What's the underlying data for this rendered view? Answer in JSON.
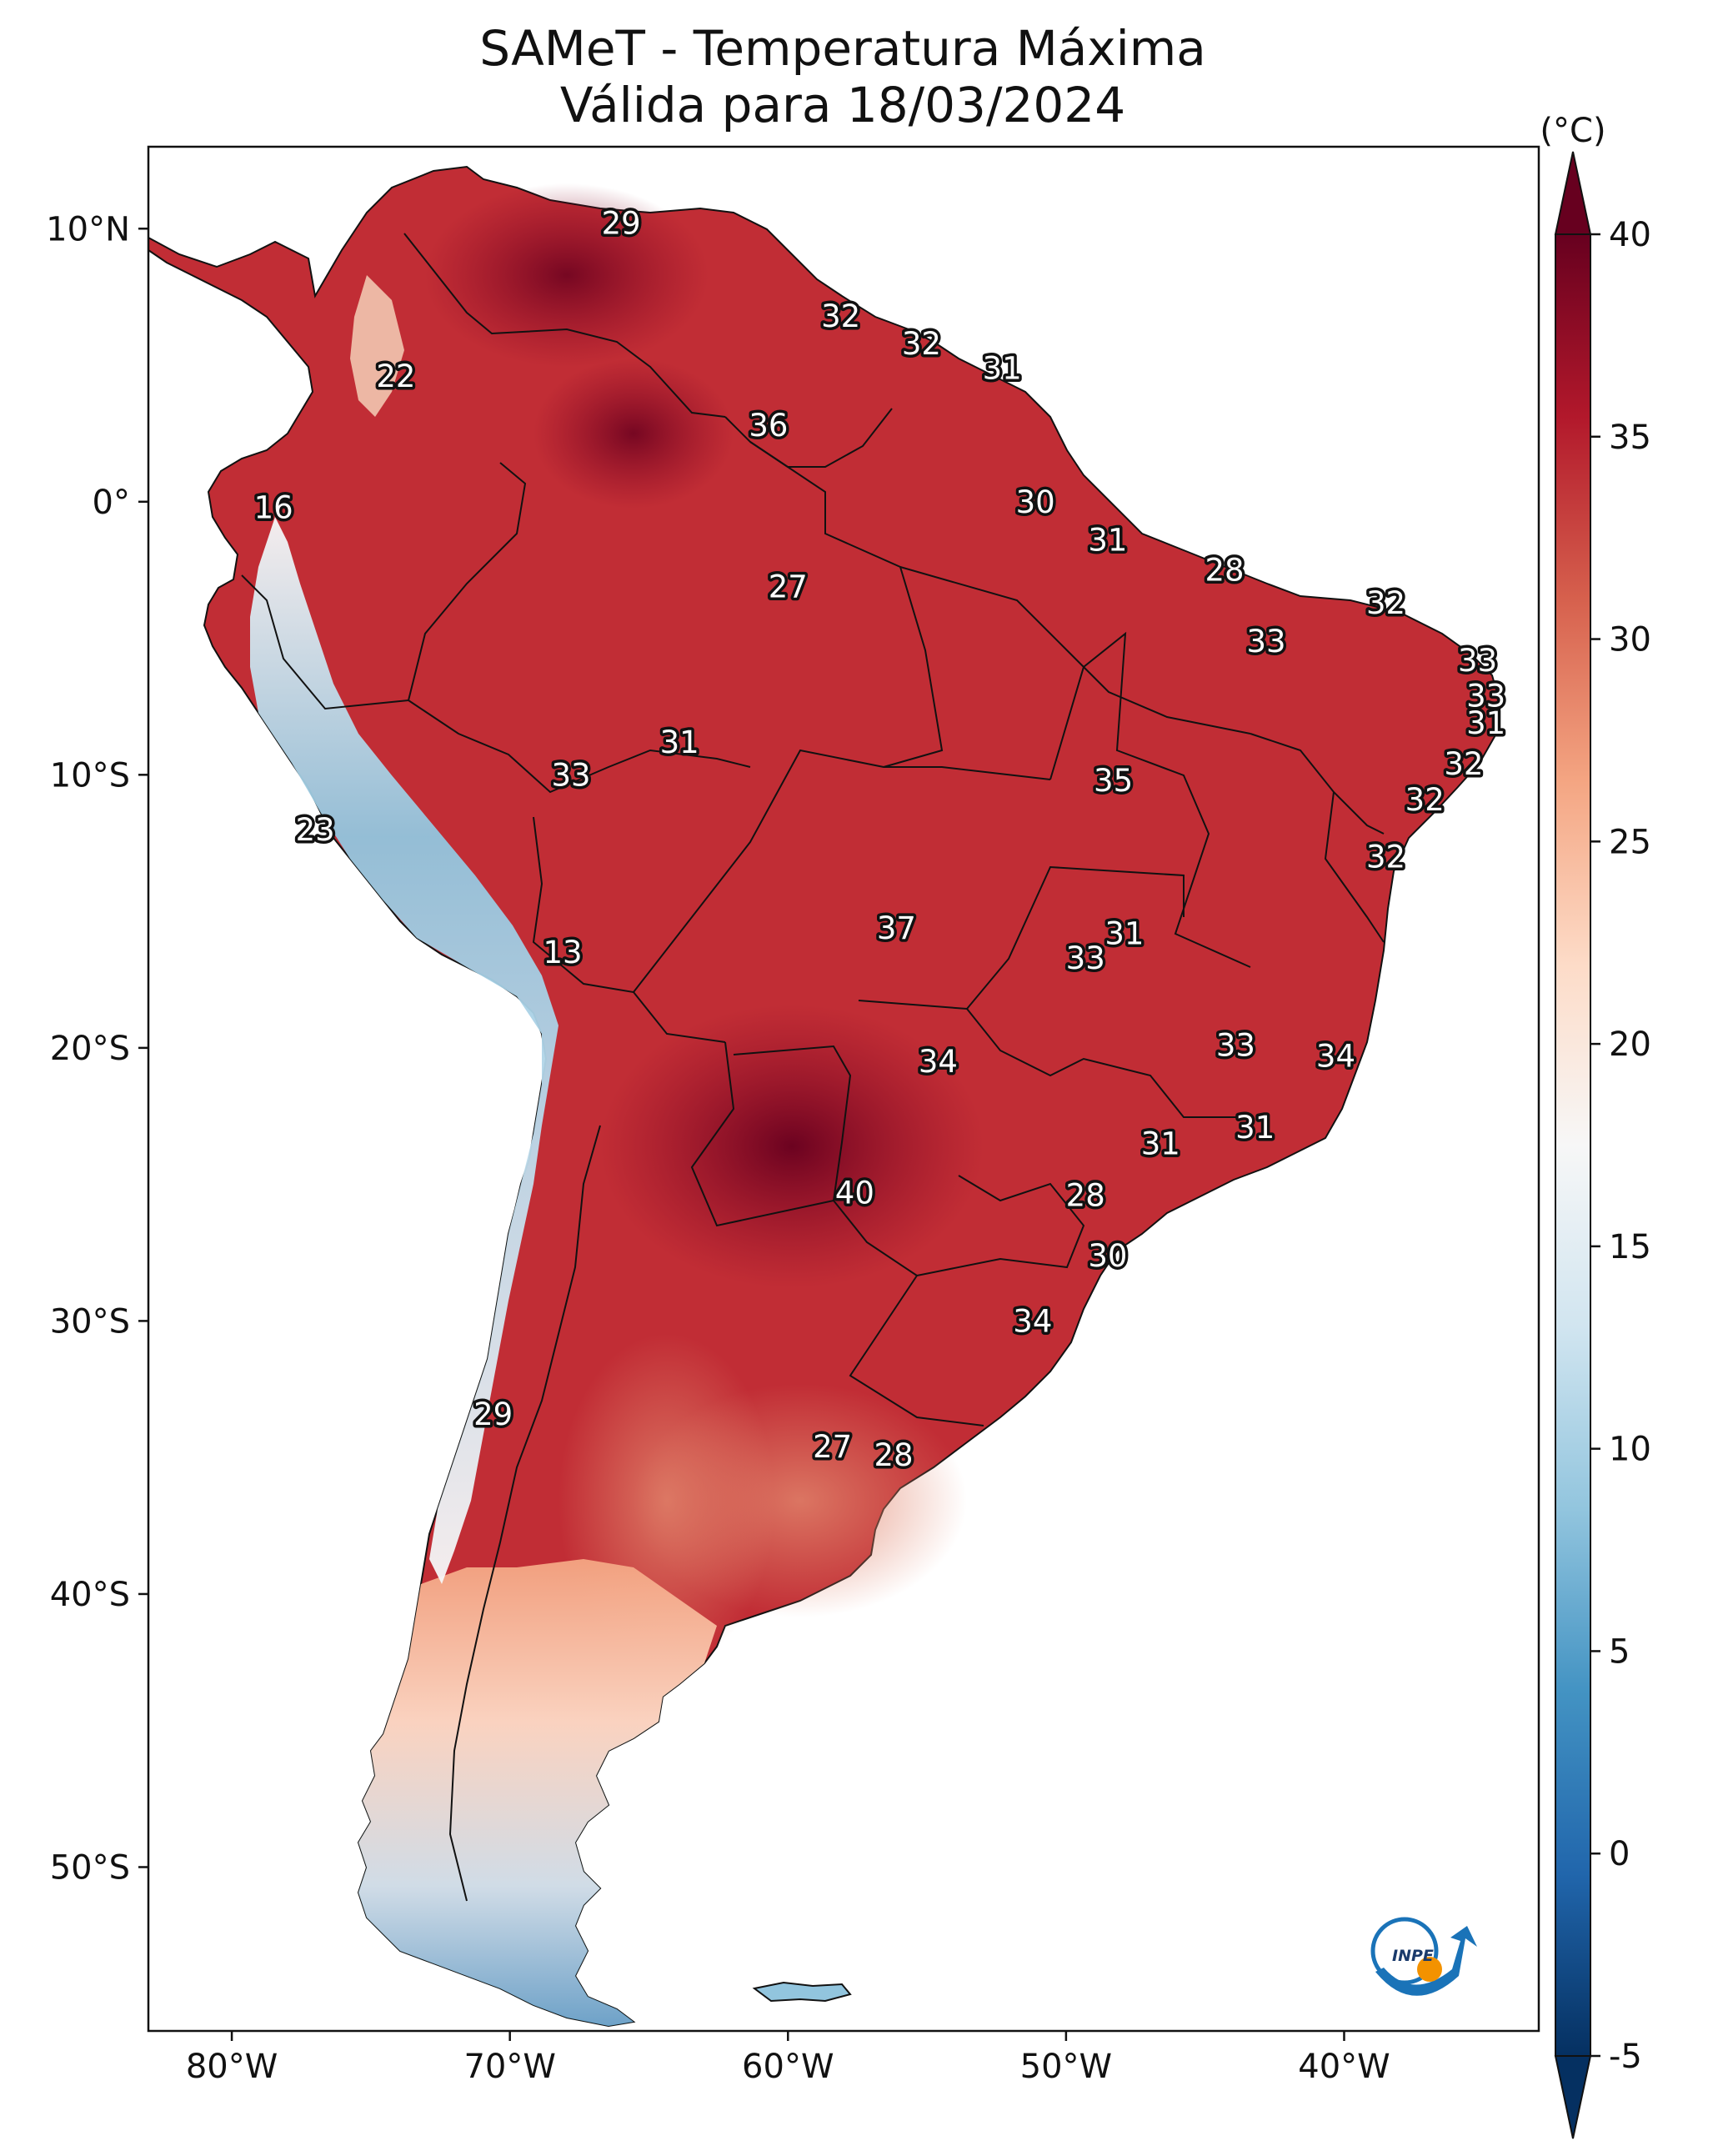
{
  "title": {
    "line1": "SAMeT - Temperatura Máxima",
    "line2": "Válida para 18/03/2024"
  },
  "map": {
    "lat_range": [
      -56,
      13
    ],
    "lon_range": [
      -83,
      -33
    ],
    "lat_ticks": [
      {
        "value": 10,
        "label": "10°N"
      },
      {
        "value": 0,
        "label": "0°"
      },
      {
        "value": -10,
        "label": "10°S"
      },
      {
        "value": -20,
        "label": "20°S"
      },
      {
        "value": -30,
        "label": "30°S"
      },
      {
        "value": -40,
        "label": "40°S"
      },
      {
        "value": -50,
        "label": "50°S"
      }
    ],
    "lon_ticks": [
      {
        "value": -80,
        "label": "80°W"
      },
      {
        "value": -70,
        "label": "70°W"
      },
      {
        "value": -60,
        "label": "60°W"
      },
      {
        "value": -50,
        "label": "50°W"
      },
      {
        "value": -40,
        "label": "40°W"
      }
    ]
  },
  "colorbar": {
    "unit_label": "(°C)",
    "min": -5,
    "max": 40,
    "ticks": [
      {
        "value": 40,
        "label": "40"
      },
      {
        "value": 35,
        "label": "35"
      },
      {
        "value": 30,
        "label": "30"
      },
      {
        "value": 25,
        "label": "25"
      },
      {
        "value": 20,
        "label": "20"
      },
      {
        "value": 15,
        "label": "15"
      },
      {
        "value": 10,
        "label": "10"
      },
      {
        "value": 5,
        "label": "5"
      },
      {
        "value": 0,
        "label": "0"
      },
      {
        "value": -5,
        "label": "-5"
      }
    ],
    "colors": [
      "#053061",
      "#2166ac",
      "#4393c3",
      "#92c5de",
      "#d1e5f0",
      "#f7f7f7",
      "#fddbc7",
      "#f4a582",
      "#d6604d",
      "#b2182b",
      "#67001f"
    ]
  },
  "logo_text": "INPE",
  "city_values": [
    {
      "label": "29",
      "lat": 10.2,
      "lon": -66.0
    },
    {
      "label": "22",
      "lat": 4.6,
      "lon": -74.1
    },
    {
      "label": "16",
      "lat": -0.2,
      "lon": -78.5
    },
    {
      "label": "32",
      "lat": 6.8,
      "lon": -58.1
    },
    {
      "label": "32",
      "lat": 5.8,
      "lon": -55.2
    },
    {
      "label": "31",
      "lat": 4.9,
      "lon": -52.3
    },
    {
      "label": "36",
      "lat": 2.8,
      "lon": -60.7
    },
    {
      "label": "30",
      "lat": 0.0,
      "lon": -51.1
    },
    {
      "label": "31",
      "lat": -1.4,
      "lon": -48.5
    },
    {
      "label": "28",
      "lat": -2.5,
      "lon": -44.3
    },
    {
      "label": "27",
      "lat": -3.1,
      "lon": -60.0
    },
    {
      "label": "32",
      "lat": -3.7,
      "lon": -38.5
    },
    {
      "label": "33",
      "lat": -5.1,
      "lon": -42.8
    },
    {
      "label": "33",
      "lat": -5.8,
      "lon": -35.2
    },
    {
      "label": "33",
      "lat": -7.1,
      "lon": -34.9
    },
    {
      "label": "31",
      "lat": -8.1,
      "lon": -34.9
    },
    {
      "label": "31",
      "lat": -8.8,
      "lon": -63.9
    },
    {
      "label": "33",
      "lat": -10.0,
      "lon": -67.8
    },
    {
      "label": "35",
      "lat": -10.2,
      "lon": -48.3
    },
    {
      "label": "32",
      "lat": -9.6,
      "lon": -35.7
    },
    {
      "label": "32",
      "lat": -10.9,
      "lon": -37.1
    },
    {
      "label": "32",
      "lat": -13.0,
      "lon": -38.5
    },
    {
      "label": "23",
      "lat": -12.0,
      "lon": -77.0
    },
    {
      "label": "13",
      "lat": -16.5,
      "lon": -68.1
    },
    {
      "label": "37",
      "lat": -15.6,
      "lon": -56.1
    },
    {
      "label": "31",
      "lat": -15.8,
      "lon": -47.9
    },
    {
      "label": "33",
      "lat": -16.7,
      "lon": -49.3
    },
    {
      "label": "33",
      "lat": -19.9,
      "lon": -43.9
    },
    {
      "label": "34",
      "lat": -20.5,
      "lon": -54.6
    },
    {
      "label": "34",
      "lat": -20.3,
      "lon": -40.3
    },
    {
      "label": "31",
      "lat": -23.5,
      "lon": -46.6
    },
    {
      "label": "31",
      "lat": -22.9,
      "lon": -43.2
    },
    {
      "label": "40",
      "lat": -25.3,
      "lon": -57.6
    },
    {
      "label": "28",
      "lat": -25.4,
      "lon": -49.3
    },
    {
      "label": "30",
      "lat": -27.6,
      "lon": -48.5
    },
    {
      "label": "34",
      "lat": -30.0,
      "lon": -51.2
    },
    {
      "label": "29",
      "lat": -33.4,
      "lon": -70.6
    },
    {
      "label": "27",
      "lat": -34.6,
      "lon": -58.4
    },
    {
      "label": "28",
      "lat": -34.9,
      "lon": -56.2
    }
  ]
}
